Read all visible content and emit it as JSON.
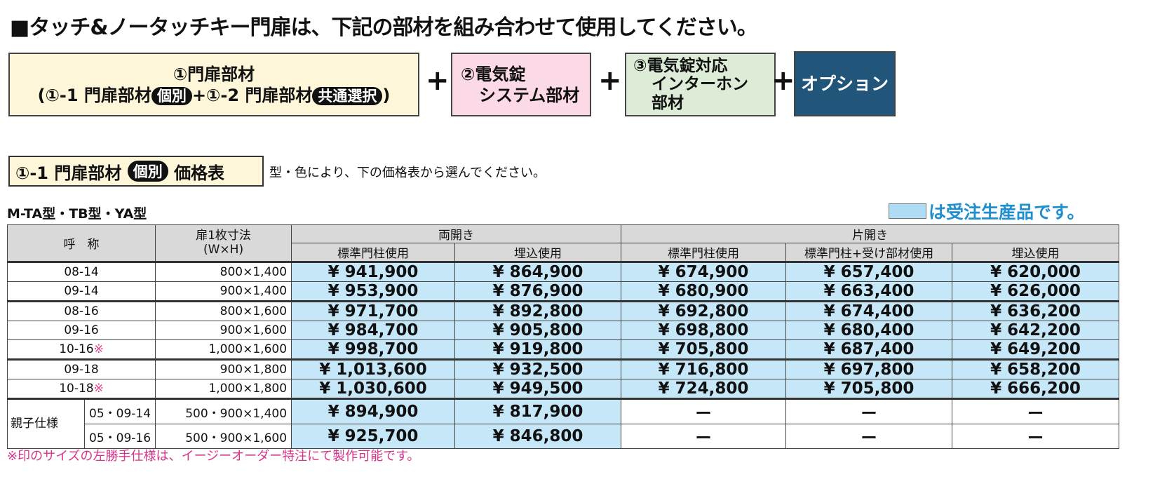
{
  "title": "■タッチ&ノータッチキー門扉は、下記の部材を組み合わせて使用してください。",
  "flow": {
    "box1": {
      "line1": "①門扉部材",
      "open": "(①-1 門扉部材",
      "pill1": "個別",
      "mid": "+①-2 門扉部材",
      "pill2": "共通選択",
      "close": ")"
    },
    "box2": {
      "line1": "②電気錠",
      "line2": "システム部材"
    },
    "box3": {
      "line1": "③電気錠対応",
      "line2": "インターホン",
      "line3": "部材"
    },
    "box4": {
      "label": "オプション"
    },
    "plus": "+"
  },
  "section": {
    "prefix": "①-1 門扉部材",
    "pill": "個別",
    "suffix": "価格表",
    "note": "型・色により、下の価格表から選んでください。"
  },
  "model": "M-TA型・TB型・YA型",
  "legend": {
    "text": "は受注生産品です。",
    "color": "#aedcf4"
  },
  "table": {
    "h_name": "呼　称",
    "h_size1": "扉1枚寸法",
    "h_size2": "(W×H)",
    "h_double": "両開き",
    "h_single": "片開き",
    "sub": [
      "標準門柱使用",
      "埋込使用",
      "標準門柱使用",
      "標準門柱+受け部材使用",
      "埋込使用"
    ],
    "oyako": "親子仕様",
    "rows": [
      {
        "code": "08-14",
        "size": "800×1,400",
        "p": [
          "¥ 941,900",
          "¥ 864,900",
          "¥ 674,900",
          "¥ 657,400",
          "¥ 620,000"
        ]
      },
      {
        "code": "09-14",
        "size": "900×1,400",
        "p": [
          "¥ 953,900",
          "¥ 876,900",
          "¥ 680,900",
          "¥ 663,400",
          "¥ 626,000"
        ]
      },
      {
        "code": "08-16",
        "size": "800×1,600",
        "p": [
          "¥ 971,700",
          "¥ 892,800",
          "¥ 692,800",
          "¥ 674,400",
          "¥ 636,200"
        ]
      },
      {
        "code": "09-16",
        "size": "900×1,600",
        "p": [
          "¥ 984,700",
          "¥ 905,800",
          "¥ 698,800",
          "¥ 680,400",
          "¥ 642,200"
        ]
      },
      {
        "code": "10-16",
        "mark": "※",
        "size": "1,000×1,600",
        "p": [
          "¥ 998,700",
          "¥ 919,800",
          "¥ 705,800",
          "¥ 687,400",
          "¥ 649,200"
        ]
      },
      {
        "code": "09-18",
        "size": "900×1,800",
        "p": [
          "¥ 1,013,600",
          "¥ 932,500",
          "¥ 716,800",
          "¥ 697,800",
          "¥ 658,200"
        ]
      },
      {
        "code": "10-18",
        "mark": "※",
        "size": "1,000×1,800",
        "p": [
          "¥ 1,030,600",
          "¥ 949,500",
          "¥ 724,800",
          "¥ 705,800",
          "¥ 666,200"
        ]
      },
      {
        "code": "05・09-14",
        "size": "500・900×1,400",
        "p": [
          "¥ 894,900",
          "¥ 817,900",
          "ー",
          "ー",
          "ー"
        ]
      },
      {
        "code": "05・09-16",
        "size": "500・900×1,600",
        "p": [
          "¥ 925,700",
          "¥ 846,800",
          "ー",
          "ー",
          "ー"
        ]
      }
    ]
  },
  "footnote": "※印のサイズの左勝手仕様は、イージーオーダー特注にて製作可能です。"
}
